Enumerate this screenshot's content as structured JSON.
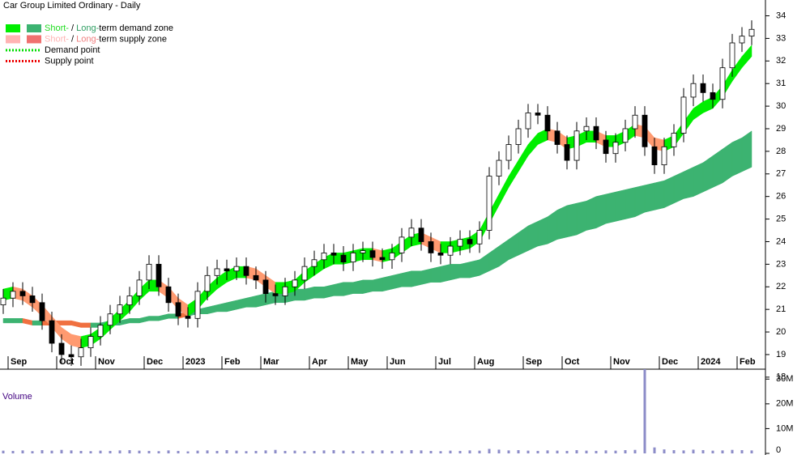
{
  "chart_data": {
    "type": "candlestick",
    "title": "Car Group Limited Ordinary - Daily",
    "volume_title": "Volume",
    "legend": [
      {
        "parts": [
          "Short-",
          " / ",
          "Long-",
          "term demand zone"
        ],
        "part_colors": [
          "#22dd22",
          "#000000",
          "#2e9e62",
          "#000000"
        ],
        "swatches": [
          "#00ee00",
          "#3cb371"
        ]
      },
      {
        "parts": [
          "Short-",
          " / ",
          "Long-",
          "term supply zone"
        ],
        "part_colors": [
          "#ffb3b3",
          "#000000",
          "#f08080",
          "#000000"
        ],
        "swatches": [
          "#ffb3b3",
          "#f07070"
        ]
      },
      {
        "parts": [
          "Demand point"
        ],
        "part_colors": [
          "#000000"
        ],
        "dotted": "#00dd00"
      },
      {
        "parts": [
          "Supply point"
        ],
        "part_colors": [
          "#000000"
        ],
        "dotted": "#ee0000"
      }
    ],
    "categories": [
      null,
      "Sep",
      null,
      null,
      null,
      null,
      "Oct",
      null,
      null,
      null,
      "Nov",
      null,
      null,
      null,
      null,
      "Dec",
      null,
      null,
      null,
      "2023",
      null,
      null,
      null,
      "Feb",
      null,
      null,
      null,
      "Mar",
      null,
      null,
      null,
      null,
      "Apr",
      null,
      null,
      null,
      "May",
      null,
      null,
      null,
      "Jun",
      null,
      null,
      null,
      null,
      "Jul",
      null,
      null,
      null,
      "Aug",
      null,
      null,
      null,
      null,
      "Sep",
      null,
      null,
      null,
      "Oct",
      null,
      null,
      null,
      null,
      "Nov",
      null,
      null,
      null,
      null,
      "Dec",
      null,
      null,
      null,
      "2024",
      null,
      null,
      null,
      "Feb",
      null
    ],
    "open": [
      21.2,
      21.5,
      21.8,
      21.6,
      21.3,
      20.5,
      19.5,
      19.0,
      18.9,
      19.3,
      19.8,
      20.3,
      20.8,
      21.2,
      21.6,
      22.3,
      23.0,
      22.0,
      21.3,
      20.7,
      20.6,
      21.8,
      22.5,
      22.8,
      22.7,
      22.9,
      22.5,
      22.3,
      21.7,
      21.6,
      22.0,
      22.3,
      22.9,
      23.2,
      23.5,
      23.4,
      23.1,
      23.5,
      23.6,
      23.3,
      23.2,
      23.5,
      24.2,
      24.6,
      24.0,
      23.5,
      23.4,
      23.8,
      24.1,
      23.9,
      24.5,
      26.9,
      27.6,
      28.3,
      29.0,
      29.7,
      29.6,
      28.9,
      28.3,
      27.6,
      28.9,
      29.1,
      28.5,
      27.9,
      28.4,
      29.0,
      29.6,
      28.2,
      27.4,
      28.2,
      28.8,
      30.4,
      31.0,
      30.6,
      30.3,
      31.7,
      32.8,
      33.1
    ],
    "high": [
      21.9,
      22.2,
      22.2,
      22.0,
      21.7,
      20.9,
      19.9,
      19.4,
      19.7,
      20.2,
      20.7,
      21.2,
      21.6,
      22.0,
      22.7,
      23.4,
      23.4,
      22.4,
      21.7,
      21.1,
      22.2,
      22.9,
      23.2,
      23.2,
      23.3,
      23.3,
      22.9,
      22.7,
      22.1,
      22.4,
      22.7,
      23.3,
      23.6,
      23.9,
      23.9,
      23.8,
      23.9,
      24.0,
      24.0,
      23.7,
      23.9,
      24.6,
      25.0,
      25.0,
      24.4,
      23.9,
      24.2,
      24.5,
      24.5,
      24.9,
      27.3,
      28.0,
      28.7,
      29.4,
      30.1,
      30.1,
      30.0,
      29.3,
      28.7,
      29.3,
      29.5,
      29.5,
      28.9,
      28.8,
      29.4,
      30.0,
      30.0,
      28.6,
      28.6,
      29.2,
      30.8,
      31.4,
      31.4,
      31.0,
      32.1,
      33.2,
      33.5,
      33.8
    ],
    "low": [
      20.8,
      21.1,
      21.2,
      20.9,
      20.1,
      19.1,
      18.6,
      18.5,
      18.5,
      18.9,
      19.4,
      19.9,
      20.4,
      20.8,
      21.2,
      21.9,
      21.6,
      20.9,
      20.3,
      20.2,
      20.2,
      21.4,
      22.1,
      22.3,
      22.3,
      22.1,
      21.9,
      21.3,
      21.2,
      21.2,
      21.6,
      21.9,
      22.5,
      22.8,
      23.0,
      22.7,
      22.7,
      23.1,
      22.9,
      22.8,
      22.8,
      23.1,
      23.8,
      23.6,
      23.1,
      23.0,
      23.0,
      23.4,
      23.5,
      23.5,
      24.1,
      26.5,
      27.2,
      27.9,
      28.6,
      29.2,
      28.5,
      27.9,
      27.2,
      27.2,
      28.5,
      28.1,
      27.5,
      27.5,
      28.0,
      28.6,
      27.8,
      27.0,
      27.0,
      27.8,
      28.4,
      30.0,
      30.2,
      29.9,
      29.9,
      31.3,
      32.4,
      32.7
    ],
    "close": [
      21.5,
      21.8,
      21.6,
      21.3,
      20.5,
      19.5,
      19.0,
      18.9,
      19.3,
      19.8,
      20.3,
      20.8,
      21.2,
      21.6,
      22.3,
      23.0,
      22.0,
      21.3,
      20.7,
      20.6,
      21.8,
      22.5,
      22.8,
      22.7,
      22.9,
      22.5,
      22.3,
      21.7,
      21.6,
      22.0,
      22.3,
      22.9,
      23.2,
      23.5,
      23.4,
      23.1,
      23.5,
      23.6,
      23.3,
      23.2,
      23.5,
      24.2,
      24.6,
      24.0,
      23.5,
      23.4,
      23.8,
      24.1,
      23.9,
      24.5,
      26.9,
      27.6,
      28.3,
      29.0,
      29.7,
      29.6,
      28.9,
      28.3,
      27.6,
      28.9,
      29.1,
      28.5,
      27.9,
      28.4,
      29.0,
      29.6,
      28.2,
      27.4,
      28.2,
      28.8,
      30.4,
      31.0,
      30.6,
      30.3,
      31.7,
      32.8,
      33.1,
      33.4
    ],
    "zones": [
      {
        "demand_color": "#3cb371",
        "supply_color": "#f07040",
        "upper": [
          20.6,
          20.6,
          20.6,
          20.5,
          20.5,
          20.5,
          20.5,
          20.5,
          20.4,
          20.4,
          20.4,
          20.5,
          20.5,
          20.6,
          20.6,
          20.7,
          20.7,
          20.8,
          20.8,
          20.9,
          21.0,
          21.1,
          21.2,
          21.3,
          21.4,
          21.5,
          21.6,
          21.7,
          21.8,
          21.8,
          21.9,
          21.9,
          22.0,
          22.0,
          22.1,
          22.2,
          22.2,
          22.3,
          22.3,
          22.4,
          22.5,
          22.6,
          22.7,
          22.7,
          22.8,
          22.9,
          23.0,
          23.0,
          23.1,
          23.2,
          23.5,
          23.8,
          24.1,
          24.4,
          24.7,
          24.9,
          25.1,
          25.4,
          25.6,
          25.7,
          25.8,
          26.0,
          26.1,
          26.2,
          26.3,
          26.4,
          26.5,
          26.6,
          26.7,
          26.9,
          27.1,
          27.3,
          27.5,
          27.8,
          28.1,
          28.4,
          28.6,
          28.9
        ],
        "lower": [
          20.4,
          20.4,
          20.4,
          20.3,
          20.3,
          20.3,
          20.3,
          20.3,
          20.2,
          20.2,
          20.2,
          20.3,
          20.3,
          20.4,
          20.4,
          20.5,
          20.5,
          20.6,
          20.6,
          20.7,
          20.8,
          20.8,
          20.9,
          20.9,
          21.0,
          21.1,
          21.1,
          21.2,
          21.3,
          21.3,
          21.4,
          21.4,
          21.5,
          21.5,
          21.6,
          21.6,
          21.7,
          21.7,
          21.8,
          21.8,
          21.9,
          22.0,
          22.0,
          22.1,
          22.2,
          22.2,
          22.3,
          22.4,
          22.4,
          22.5,
          22.7,
          22.9,
          23.2,
          23.4,
          23.6,
          23.8,
          23.9,
          24.1,
          24.2,
          24.3,
          24.5,
          24.6,
          24.8,
          24.9,
          25.0,
          25.1,
          25.3,
          25.4,
          25.5,
          25.7,
          25.9,
          26.0,
          26.2,
          26.4,
          26.6,
          26.9,
          27.1,
          27.3
        ]
      },
      {
        "demand_color": "#00ee00",
        "supply_color": "#ff9a70",
        "upper": [
          21.9,
          22.0,
          21.9,
          21.6,
          21.2,
          20.7,
          20.2,
          19.9,
          19.8,
          19.9,
          20.2,
          20.6,
          21.0,
          21.4,
          21.9,
          22.3,
          22.3,
          22.0,
          21.5,
          21.2,
          21.5,
          22.0,
          22.4,
          22.7,
          22.9,
          22.9,
          22.8,
          22.5,
          22.2,
          22.2,
          22.3,
          22.7,
          23.0,
          23.3,
          23.5,
          23.5,
          23.6,
          23.7,
          23.7,
          23.6,
          23.7,
          24.0,
          24.3,
          24.4,
          24.2,
          24.0,
          24.0,
          24.1,
          24.2,
          24.5,
          25.3,
          26.1,
          26.9,
          27.6,
          28.3,
          28.8,
          29.0,
          28.9,
          28.6,
          28.7,
          28.9,
          28.9,
          28.7,
          28.7,
          28.9,
          29.2,
          29.1,
          28.6,
          28.5,
          28.7,
          29.3,
          29.9,
          30.2,
          30.4,
          30.9,
          31.6,
          32.2,
          32.7
        ],
        "lower": [
          21.4,
          21.5,
          21.4,
          21.1,
          20.7,
          20.2,
          19.7,
          19.4,
          19.3,
          19.4,
          19.7,
          20.1,
          20.5,
          20.9,
          21.4,
          21.8,
          21.8,
          21.5,
          21.0,
          20.7,
          21.0,
          21.5,
          21.9,
          22.2,
          22.4,
          22.4,
          22.3,
          22.0,
          21.7,
          21.7,
          21.8,
          22.2,
          22.5,
          22.8,
          23.0,
          23.0,
          23.1,
          23.2,
          23.2,
          23.1,
          23.2,
          23.5,
          23.8,
          23.9,
          23.7,
          23.5,
          23.5,
          23.6,
          23.7,
          24.0,
          24.8,
          25.6,
          26.4,
          27.1,
          27.8,
          28.3,
          28.5,
          28.4,
          28.1,
          28.2,
          28.4,
          28.4,
          28.2,
          28.2,
          28.4,
          28.7,
          28.6,
          28.1,
          28.0,
          28.2,
          28.8,
          29.4,
          29.7,
          29.9,
          30.4,
          31.1,
          31.7,
          32.2
        ]
      }
    ],
    "volume": [
      1100000,
      1000000,
      1200000,
      900000,
      1300000,
      1100000,
      1400000,
      1200000,
      1000000,
      900000,
      1100000,
      1000000,
      1200000,
      1300000,
      1100000,
      1000000,
      900000,
      1200000,
      1000000,
      800000,
      1100000,
      1200000,
      1000000,
      1300000,
      1100000,
      900000,
      1000000,
      1200000,
      1400000,
      1000000,
      1100000,
      900000,
      1000000,
      1200000,
      1300000,
      1100000,
      1000000,
      900000,
      1100000,
      1200000,
      1000000,
      1100000,
      1300000,
      1200000,
      1000000,
      900000,
      1100000,
      1000000,
      1200000,
      1100000,
      1800000,
      1500000,
      1200000,
      1300000,
      1100000,
      1000000,
      1200000,
      1100000,
      1000000,
      1300000,
      1100000,
      1000000,
      1200000,
      1100000,
      1300000,
      1400000,
      34000000,
      2400000,
      1600000,
      1300000,
      1200000,
      1500000,
      1300000,
      1100000,
      1200000,
      1400000,
      1300000,
      1200000
    ],
    "ylim": [
      17.6,
      34.7
    ],
    "yticks": [
      18,
      19,
      20,
      21,
      22,
      23,
      24,
      25,
      26,
      27,
      28,
      29,
      30,
      31,
      32,
      33,
      34
    ],
    "vlim": [
      0,
      34000000
    ],
    "vticks": [
      0,
      {
        "value": 10000000,
        "label": "10M"
      },
      {
        "value": 20000000,
        "label": "20M"
      },
      {
        "value": 30000000,
        "label": "30M"
      }
    ],
    "up_color": "#ffffff",
    "down_color": "#000000",
    "volume_color": "#8c8cc8"
  }
}
